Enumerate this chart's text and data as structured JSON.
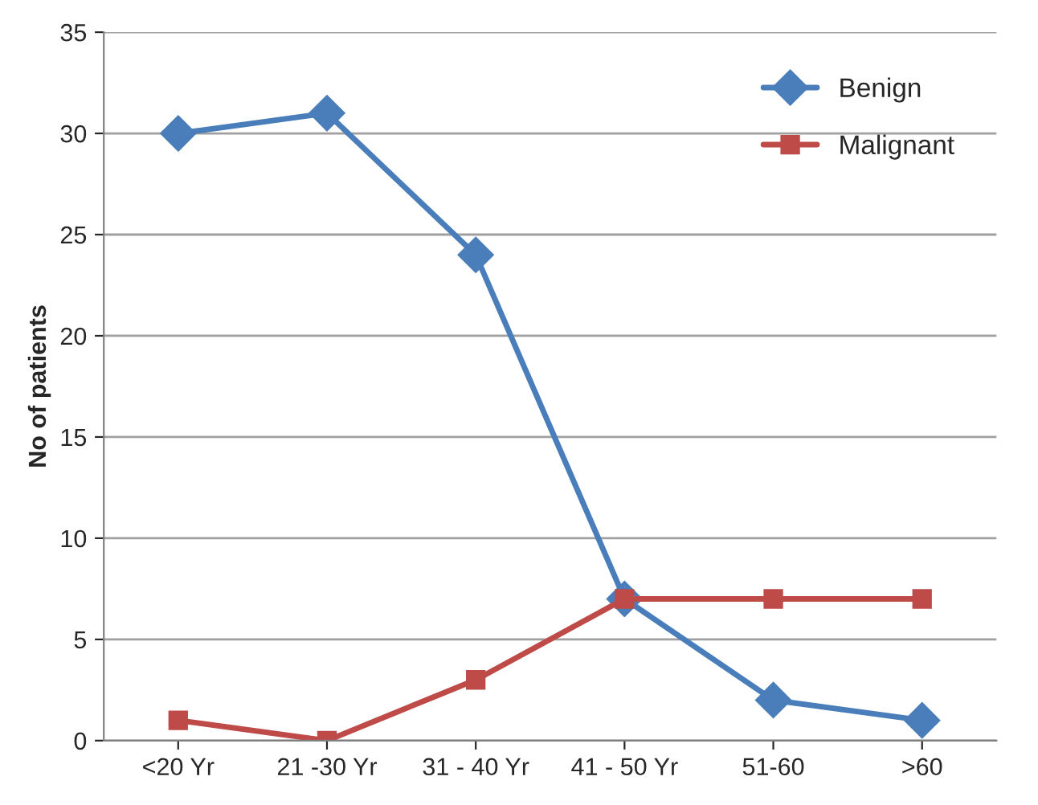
{
  "chart_data": {
    "type": "line",
    "ylabel": "No of patients",
    "categories": [
      "<20 Yr",
      "21 -30 Yr",
      "31 - 40 Yr",
      "41 - 50 Yr",
      "51-60",
      ">60"
    ],
    "series": [
      {
        "name": "Benign",
        "color": "#4a7ebb",
        "marker": "diamond",
        "values": [
          30,
          31,
          24,
          7,
          2,
          1
        ]
      },
      {
        "name": "Malignant",
        "color": "#be4b48",
        "marker": "square",
        "values": [
          1,
          0,
          3,
          7,
          7,
          7
        ]
      }
    ],
    "ylim": [
      0,
      35
    ],
    "yticks": [
      0,
      5,
      10,
      15,
      20,
      25,
      30,
      35
    ],
    "grid": "y",
    "legend": "top right",
    "line_style": "solid"
  }
}
